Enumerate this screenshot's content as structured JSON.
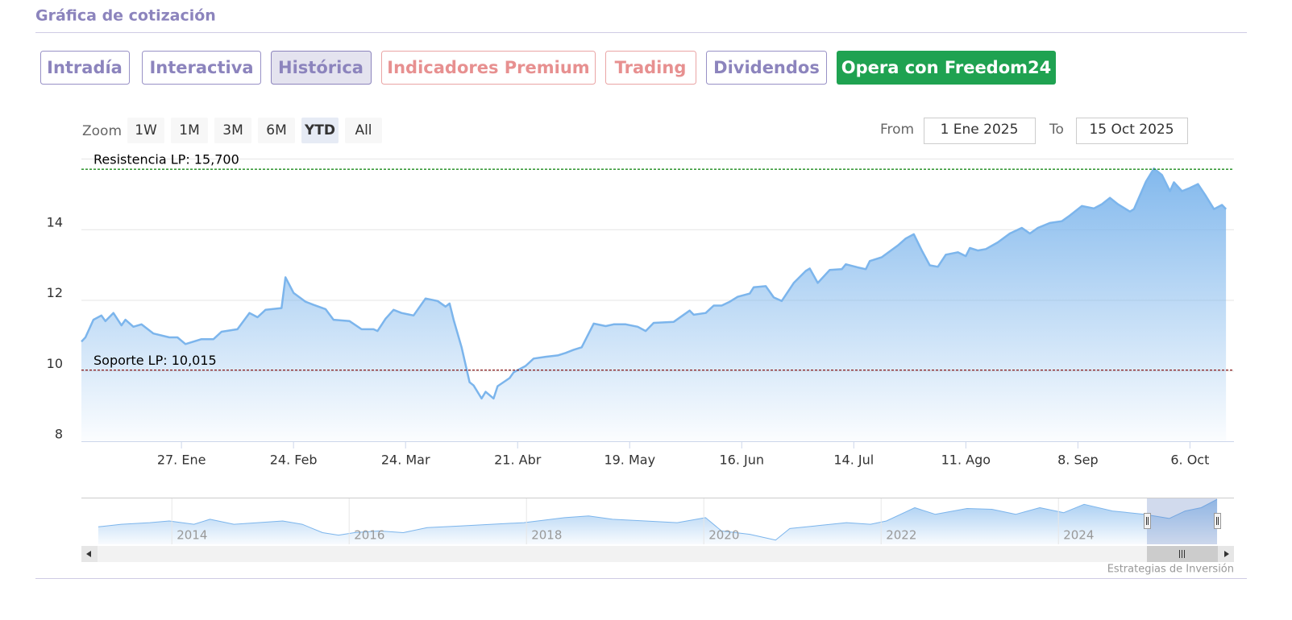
{
  "header": {
    "title": "Gráfica de cotización"
  },
  "tabs": [
    "Intradía",
    "Interactiva",
    "Histórica",
    "Indicadores Premium",
    "Trading",
    "Dividendos"
  ],
  "cta": "Opera con Freedom24",
  "range_selector": {
    "zoom_label": "Zoom",
    "buttons": [
      "1W",
      "1M",
      "3M",
      "6M",
      "YTD",
      "All"
    ],
    "selected": 4,
    "from_label": "From",
    "from": "1 Ene 2025",
    "to_label": "To",
    "to": "15 Oct 2025"
  },
  "credit": "Estrategias de Inversión",
  "chart_data": [
    {
      "type": "area",
      "x": [
        "2025-01-02",
        "2025-01-03",
        "2025-01-05",
        "2025-01-07",
        "2025-01-08",
        "2025-01-10",
        "2025-01-12",
        "2025-01-13",
        "2025-01-15",
        "2025-01-17",
        "2025-01-20",
        "2025-01-24",
        "2025-01-26",
        "2025-01-28",
        "2025-02-01",
        "2025-02-04",
        "2025-02-06",
        "2025-02-10",
        "2025-02-13",
        "2025-02-15",
        "2025-02-17",
        "2025-02-21",
        "2025-02-22",
        "2025-02-24",
        "2025-02-27",
        "2025-03-01",
        "2025-03-04",
        "2025-03-06",
        "2025-03-10",
        "2025-03-13",
        "2025-03-16",
        "2025-03-17",
        "2025-03-19",
        "2025-03-21",
        "2025-03-23",
        "2025-03-26",
        "2025-03-29",
        "2025-04-01",
        "2025-04-03",
        "2025-04-04",
        "2025-04-05",
        "2025-04-07",
        "2025-04-09",
        "2025-04-10",
        "2025-04-12",
        "2025-04-13",
        "2025-04-15",
        "2025-04-16",
        "2025-04-19",
        "2025-04-20",
        "2025-04-23",
        "2025-04-25",
        "2025-04-28",
        "2025-05-01",
        "2025-05-03",
        "2025-05-05",
        "2025-05-07",
        "2025-05-10",
        "2025-05-13",
        "2025-05-15",
        "2025-05-18",
        "2025-05-21",
        "2025-05-23",
        "2025-05-25",
        "2025-05-30",
        "2025-06-01",
        "2025-06-03",
        "2025-06-04",
        "2025-06-07",
        "2025-06-09",
        "2025-06-11",
        "2025-06-13",
        "2025-06-15",
        "2025-06-18",
        "2025-06-19",
        "2025-06-22",
        "2025-06-24",
        "2025-06-26",
        "2025-06-29",
        "2025-07-02",
        "2025-07-03",
        "2025-07-05",
        "2025-07-08",
        "2025-07-11",
        "2025-07-12",
        "2025-07-15",
        "2025-07-17",
        "2025-07-18",
        "2025-07-21",
        "2025-07-25",
        "2025-07-27",
        "2025-07-29",
        "2025-07-31",
        "2025-08-02",
        "2025-08-04",
        "2025-08-06",
        "2025-08-09",
        "2025-08-11",
        "2025-08-12",
        "2025-08-14",
        "2025-08-16",
        "2025-08-19",
        "2025-08-22",
        "2025-08-25",
        "2025-08-27",
        "2025-08-29",
        "2025-09-01",
        "2025-09-04",
        "2025-09-06",
        "2025-09-09",
        "2025-09-12",
        "2025-09-14",
        "2025-09-16",
        "2025-09-18",
        "2025-09-21",
        "2025-09-22",
        "2025-09-25",
        "2025-09-27",
        "2025-09-29",
        "2025-10-01",
        "2025-10-02",
        "2025-10-04",
        "2025-10-06",
        "2025-10-08",
        "2025-10-10",
        "2025-10-12",
        "2025-10-14",
        "2025-10-15"
      ],
      "series": [
        {
          "color": "#7cb5ec",
          "values": [
            10.82,
            10.94,
            11.44,
            11.56,
            11.4,
            11.63,
            11.28,
            11.44,
            11.24,
            11.31,
            11.05,
            10.94,
            10.94,
            10.75,
            10.89,
            10.89,
            11.1,
            11.17,
            11.63,
            11.51,
            11.72,
            11.77,
            12.64,
            12.2,
            11.95,
            11.86,
            11.74,
            11.44,
            11.4,
            11.17,
            11.17,
            11.12,
            11.47,
            11.72,
            11.63,
            11.56,
            12.04,
            11.97,
            11.81,
            11.9,
            11.44,
            10.66,
            9.67,
            9.58,
            9.21,
            9.4,
            9.21,
            9.56,
            9.79,
            9.95,
            10.13,
            10.34,
            10.39,
            10.43,
            10.5,
            10.59,
            10.66,
            11.33,
            11.26,
            11.31,
            11.31,
            11.24,
            11.12,
            11.35,
            11.38,
            11.54,
            11.7,
            11.58,
            11.63,
            11.84,
            11.84,
            11.95,
            12.09,
            12.18,
            12.36,
            12.39,
            12.07,
            11.97,
            12.48,
            12.82,
            12.89,
            12.48,
            12.85,
            12.87,
            13.01,
            12.92,
            12.87,
            13.1,
            13.21,
            13.54,
            13.74,
            13.86,
            13.4,
            12.98,
            12.94,
            13.28,
            13.35,
            13.24,
            13.47,
            13.4,
            13.44,
            13.63,
            13.88,
            14.04,
            13.88,
            14.04,
            14.18,
            14.23,
            14.39,
            14.66,
            14.59,
            14.71,
            14.89,
            14.71,
            14.5,
            14.57,
            15.35,
            15.72,
            15.54,
            15.08,
            15.33,
            15.08,
            15.17,
            15.28,
            14.94,
            14.57,
            14.69,
            14.57
          ]
        }
      ],
      "xlim": [
        "2025-01-02",
        "2025-10-17"
      ],
      "xticks": [
        {
          "value": "2025-01-27",
          "label": "27. Ene"
        },
        {
          "value": "2025-02-24",
          "label": "24. Feb"
        },
        {
          "value": "2025-03-24",
          "label": "24. Mar"
        },
        {
          "value": "2025-04-21",
          "label": "21. Abr"
        },
        {
          "value": "2025-05-19",
          "label": "19. May"
        },
        {
          "value": "2025-06-16",
          "label": "16. Jun"
        },
        {
          "value": "2025-07-14",
          "label": "14. Jul"
        },
        {
          "value": "2025-08-11",
          "label": "11. Ago"
        },
        {
          "value": "2025-09-08",
          "label": "8. Sep"
        },
        {
          "value": "2025-10-06",
          "label": "6. Oct"
        }
      ],
      "ylim": [
        8,
        16
      ],
      "yticks": [
        8,
        10,
        12,
        14
      ],
      "grid": true,
      "plot_lines": [
        {
          "value": 15.7,
          "label": "Resistencia LP: 15,700",
          "color": "#1a8a1a"
        },
        {
          "value": 10.015,
          "label": "Soporte LP: 10,015",
          "color": "#8b1a1a"
        }
      ]
    },
    {
      "type": "area",
      "x": [
        2013.17,
        2013.43,
        2013.75,
        2013.97,
        2014.25,
        2014.43,
        2014.7,
        2014.97,
        2015.25,
        2015.47,
        2015.7,
        2015.88,
        2016.06,
        2016.34,
        2016.61,
        2016.88,
        2017.25,
        2017.61,
        2017.97,
        2018.43,
        2018.7,
        2018.97,
        2019.34,
        2019.7,
        2020.02,
        2020.2,
        2020.52,
        2020.81,
        2020.97,
        2021.25,
        2021.61,
        2021.88,
        2022.06,
        2022.38,
        2022.61,
        2022.97,
        2023.25,
        2023.52,
        2023.79,
        2024.06,
        2024.29,
        2024.61,
        2024.97,
        2025.25,
        2025.43,
        2025.61,
        2025.79
      ],
      "series": [
        {
          "color": "#7cb5ec",
          "values": [
            10.04,
            10.55,
            10.88,
            11.22,
            10.55,
            11.56,
            10.55,
            10.88,
            11.22,
            10.55,
            8.86,
            8.35,
            8.86,
            9.2,
            8.86,
            9.87,
            10.21,
            10.55,
            10.88,
            11.9,
            12.23,
            11.56,
            11.22,
            10.88,
            11.9,
            9.2,
            8.52,
            7.34,
            9.7,
            10.21,
            10.88,
            10.55,
            11.22,
            13.92,
            12.57,
            13.75,
            13.58,
            12.57,
            13.92,
            12.91,
            14.59,
            13.25,
            12.57,
            11.73,
            13.25,
            13.92,
            15.61
          ]
        }
      ],
      "xlim": [
        2012.98,
        2025.98
      ],
      "ylim": [
        6.5,
        15.95
      ],
      "xticks": [
        2014,
        2016,
        2018,
        2020,
        2022,
        2024
      ],
      "grid": true
    }
  ]
}
